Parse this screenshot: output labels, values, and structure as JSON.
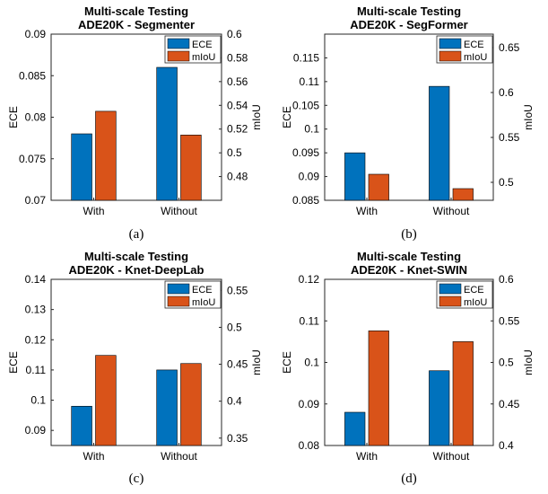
{
  "colors": {
    "ece": "#0072BD",
    "miou": "#D95319"
  },
  "chart_data": [
    {
      "type": "bar",
      "title": "Multi-scale Testing",
      "subtitle": "ADE20K - Segmenter",
      "caption": "(a)",
      "categories": [
        "With",
        "Without"
      ],
      "series": [
        {
          "name": "ECE",
          "axis": "left",
          "values": [
            0.078,
            0.086
          ]
        },
        {
          "name": "mIoU",
          "axis": "right",
          "values": [
            0.535,
            0.515
          ]
        }
      ],
      "ylabel": "ECE",
      "ylabel_right": "mIoU",
      "ylim": [
        0.07,
        0.09
      ],
      "ylim_right": [
        0.46,
        0.6
      ],
      "yticks": [
        0.07,
        0.075,
        0.08,
        0.085,
        0.09
      ],
      "yticks_right": [
        0.48,
        0.5,
        0.52,
        0.54,
        0.56,
        0.58,
        0.6
      ],
      "ytick_labels": [
        "0.07",
        "0.075",
        "0.08",
        "0.085",
        "0.09"
      ],
      "ytick_labels_right": [
        "0.48",
        "0.5",
        "0.52",
        "0.54",
        "0.56",
        "0.58",
        "0.6"
      ],
      "legend": "top-right",
      "grid": false
    },
    {
      "type": "bar",
      "title": "Multi-scale Testing",
      "subtitle": "ADE20K - SegFormer",
      "caption": "(b)",
      "categories": [
        "With",
        "Without"
      ],
      "series": [
        {
          "name": "ECE",
          "axis": "left",
          "values": [
            0.095,
            0.109
          ]
        },
        {
          "name": "mIoU",
          "axis": "right",
          "values": [
            0.509,
            0.493
          ]
        }
      ],
      "ylabel": "ECE",
      "ylabel_right": "mIoU",
      "ylim": [
        0.085,
        0.12
      ],
      "ylim_right": [
        0.48,
        0.665
      ],
      "yticks": [
        0.085,
        0.09,
        0.095,
        0.1,
        0.105,
        0.11,
        0.115
      ],
      "yticks_right": [
        0.5,
        0.55,
        0.6,
        0.65
      ],
      "ytick_labels": [
        "0.085",
        "0.09",
        "0.095",
        "0.1",
        "0.105",
        "0.11",
        "0.115"
      ],
      "ytick_labels_right": [
        "0.5",
        "0.55",
        "0.6",
        "0.65"
      ],
      "legend": "top-right",
      "grid": false
    },
    {
      "type": "bar",
      "title": "Multi-scale Testing",
      "subtitle": "ADE20K - Knet-DeepLab",
      "caption": "(c)",
      "categories": [
        "With",
        "Without"
      ],
      "series": [
        {
          "name": "ECE",
          "axis": "left",
          "values": [
            0.098,
            0.11
          ]
        },
        {
          "name": "mIoU",
          "axis": "right",
          "values": [
            0.462,
            0.451
          ]
        }
      ],
      "ylabel": "ECE",
      "ylabel_right": "mIoU",
      "ylim": [
        0.085,
        0.14
      ],
      "ylim_right": [
        0.34,
        0.565
      ],
      "yticks": [
        0.09,
        0.1,
        0.11,
        0.12,
        0.13,
        0.14
      ],
      "yticks_right": [
        0.35,
        0.4,
        0.45,
        0.5,
        0.55
      ],
      "ytick_labels": [
        "0.09",
        "0.1",
        "0.11",
        "0.12",
        "0.13",
        "0.14"
      ],
      "ytick_labels_right": [
        "0.35",
        "0.4",
        "0.45",
        "0.5",
        "0.55"
      ],
      "legend": "top-right",
      "grid": false
    },
    {
      "type": "bar",
      "title": "Multi-scale Testing",
      "subtitle": "ADE20K - Knet-SWIN",
      "caption": "(d)",
      "categories": [
        "With",
        "Without"
      ],
      "series": [
        {
          "name": "ECE",
          "axis": "left",
          "values": [
            0.088,
            0.098
          ]
        },
        {
          "name": "mIoU",
          "axis": "right",
          "values": [
            0.538,
            0.525
          ]
        }
      ],
      "ylabel": "ECE",
      "ylabel_right": "mIoU",
      "ylim": [
        0.08,
        0.12
      ],
      "ylim_right": [
        0.4,
        0.6
      ],
      "yticks": [
        0.08,
        0.09,
        0.1,
        0.11,
        0.12
      ],
      "yticks_right": [
        0.4,
        0.45,
        0.5,
        0.55,
        0.6
      ],
      "ytick_labels": [
        "0.08",
        "0.09",
        "0.1",
        "0.11",
        "0.12"
      ],
      "ytick_labels_right": [
        "0.4",
        "0.45",
        "0.5",
        "0.55",
        "0.6"
      ],
      "legend": "top-right",
      "grid": false
    }
  ]
}
